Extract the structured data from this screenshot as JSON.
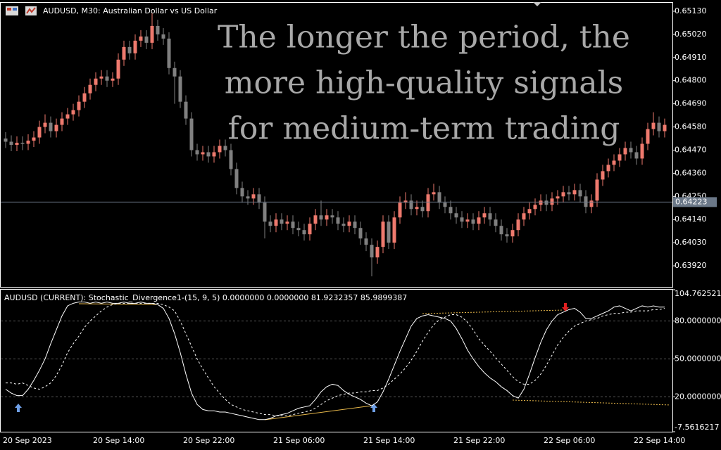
{
  "overlay_text": [
    "The longer the period, the",
    "more high-quality signals",
    "for medium-term trading"
  ],
  "chart_data": [
    {
      "type": "candlestick",
      "title": "AUDUSD, M30:  Australian Dollar vs US Dollar",
      "categories": [
        "20 Sep 2023",
        null,
        null,
        null,
        null,
        null,
        null,
        null,
        null,
        null,
        null,
        null,
        null,
        null,
        null,
        null,
        "20 Sep 14:00",
        null,
        null,
        null,
        null,
        null,
        null,
        null,
        null,
        null,
        null,
        null,
        null,
        null,
        null,
        null,
        "20 Sep 22:00",
        null,
        null,
        null,
        null,
        null,
        null,
        null,
        null,
        null,
        null,
        null,
        null,
        null,
        null,
        null,
        "21 Sep 06:00",
        null,
        null,
        null,
        null,
        null,
        null,
        null,
        null,
        null,
        null,
        null,
        null,
        null,
        null,
        null,
        "21 Sep 14:00",
        null,
        null,
        null,
        null,
        null,
        null,
        null,
        null,
        null,
        null,
        null,
        null,
        null,
        null,
        null,
        "21 Sep 22:00",
        null,
        null,
        null,
        null,
        null,
        null,
        null,
        null,
        null,
        null,
        null,
        null,
        null,
        null,
        null,
        "22 Sep 06:00",
        null,
        null,
        null,
        null,
        null,
        null,
        null,
        null,
        null,
        null,
        null,
        null,
        null,
        null,
        null,
        "22 Sep 14:00",
        null,
        null,
        null,
        null,
        null
      ],
      "open": [
        0.64525,
        0.6451,
        0.64495,
        0.64505,
        0.645,
        0.64515,
        0.6453,
        0.6458,
        0.646,
        0.6456,
        0.6459,
        0.6462,
        0.6464,
        0.6466,
        0.647,
        0.6474,
        0.6478,
        0.6481,
        0.6482,
        0.648,
        0.6481,
        0.649,
        0.6496,
        0.6493,
        0.6499,
        0.6501,
        0.6498,
        0.6506,
        0.6502,
        0.65,
        0.6486,
        0.6482,
        0.647,
        0.6462,
        0.6447,
        0.6445,
        0.6446,
        0.6444,
        0.6446,
        0.6449,
        0.6447,
        0.6438,
        0.6429,
        0.6425,
        0.6424,
        0.6426,
        0.6422,
        0.6413,
        0.6411,
        0.6414,
        0.6412,
        0.6413,
        0.641,
        0.6409,
        0.6407,
        0.6412,
        0.6416,
        0.6414,
        0.6416,
        0.6415,
        0.6412,
        0.6411,
        0.6413,
        0.641,
        0.6405,
        0.6402,
        0.6396,
        0.6401,
        0.6413,
        0.6403,
        0.6415,
        0.6422,
        0.6423,
        0.6419,
        0.642,
        0.6418,
        0.6426,
        0.6427,
        0.6422,
        0.642,
        0.6417,
        0.6415,
        0.6413,
        0.6414,
        0.6412,
        0.6415,
        0.6417,
        0.6414,
        0.6411,
        0.6407,
        0.6406,
        0.6409,
        0.6414,
        0.6417,
        0.6419,
        0.6421,
        0.6423,
        0.6421,
        0.6424,
        0.6425,
        0.6427,
        0.6426,
        0.6428,
        0.6425,
        0.642,
        0.6423,
        0.6433,
        0.6437,
        0.644,
        0.6442,
        0.6445,
        0.6448,
        0.6446,
        0.6443,
        0.645,
        0.6457,
        0.646,
        0.6456
      ],
      "high": [
        0.64555,
        0.6454,
        0.64535,
        0.64535,
        0.64545,
        0.6456,
        0.6461,
        0.6464,
        0.6463,
        0.6462,
        0.6465,
        0.6467,
        0.6469,
        0.6473,
        0.6477,
        0.6481,
        0.6484,
        0.6485,
        0.6485,
        0.6484,
        0.6493,
        0.6499,
        0.6499,
        0.6502,
        0.6504,
        0.6504,
        0.6512,
        0.6509,
        0.6505,
        0.6503,
        0.6489,
        0.6485,
        0.6473,
        0.6465,
        0.645,
        0.6449,
        0.6449,
        0.6449,
        0.6452,
        0.6452,
        0.645,
        0.6441,
        0.6432,
        0.6428,
        0.6429,
        0.6429,
        0.6425,
        0.6416,
        0.6417,
        0.6417,
        0.6416,
        0.6416,
        0.6413,
        0.6412,
        0.6415,
        0.6419,
        0.6423,
        0.6419,
        0.6419,
        0.6418,
        0.6415,
        0.6416,
        0.6416,
        0.6413,
        0.6408,
        0.6405,
        0.6404,
        0.6416,
        0.6416,
        0.6418,
        0.6425,
        0.6427,
        0.6426,
        0.6423,
        0.6423,
        0.6429,
        0.6431,
        0.643,
        0.6425,
        0.6423,
        0.642,
        0.6418,
        0.6417,
        0.6417,
        0.6418,
        0.642,
        0.642,
        0.6417,
        0.6414,
        0.641,
        0.6412,
        0.6417,
        0.642,
        0.6422,
        0.6424,
        0.6426,
        0.6426,
        0.6427,
        0.6428,
        0.643,
        0.643,
        0.6431,
        0.6431,
        0.6428,
        0.6426,
        0.6436,
        0.644,
        0.6443,
        0.6445,
        0.6448,
        0.6451,
        0.6451,
        0.6449,
        0.6453,
        0.646,
        0.6465,
        0.6463,
        0.6462
      ],
      "low": [
        0.6448,
        0.64465,
        0.64465,
        0.6447,
        0.6447,
        0.64485,
        0.645,
        0.6455,
        0.6453,
        0.6453,
        0.6456,
        0.6459,
        0.6461,
        0.6463,
        0.6467,
        0.6471,
        0.6475,
        0.6478,
        0.6477,
        0.6477,
        0.6478,
        0.6487,
        0.649,
        0.649,
        0.6496,
        0.6495,
        0.6495,
        0.6499,
        0.6497,
        0.6483,
        0.6469,
        0.6467,
        0.6459,
        0.6444,
        0.6442,
        0.6442,
        0.6441,
        0.6441,
        0.6443,
        0.6444,
        0.6435,
        0.6426,
        0.6422,
        0.6421,
        0.6421,
        0.6419,
        0.6405,
        0.6408,
        0.6408,
        0.6409,
        0.6409,
        0.6407,
        0.6406,
        0.6404,
        0.6404,
        0.6409,
        0.6411,
        0.6411,
        0.6412,
        0.6409,
        0.6408,
        0.6408,
        0.6407,
        0.6402,
        0.6399,
        0.6387,
        0.6393,
        0.6398,
        0.64,
        0.64,
        0.6412,
        0.6419,
        0.6416,
        0.6416,
        0.6415,
        0.6415,
        0.6423,
        0.6419,
        0.6417,
        0.6414,
        0.6412,
        0.641,
        0.641,
        0.6409,
        0.6409,
        0.6412,
        0.6411,
        0.6408,
        0.6404,
        0.6403,
        0.6403,
        0.6406,
        0.6411,
        0.6414,
        0.6416,
        0.6418,
        0.6418,
        0.6418,
        0.6421,
        0.6422,
        0.6423,
        0.6423,
        0.6422,
        0.6417,
        0.6417,
        0.642,
        0.643,
        0.6434,
        0.6437,
        0.6439,
        0.6442,
        0.6443,
        0.644,
        0.644,
        0.6447,
        0.6454,
        0.6453,
        0.6453
      ],
      "close": [
        0.6451,
        0.64495,
        0.64505,
        0.645,
        0.64515,
        0.6453,
        0.6458,
        0.646,
        0.6456,
        0.6459,
        0.6462,
        0.6464,
        0.6466,
        0.647,
        0.6474,
        0.6478,
        0.6481,
        0.6482,
        0.648,
        0.6481,
        0.649,
        0.6496,
        0.6493,
        0.6499,
        0.6501,
        0.6498,
        0.6506,
        0.6502,
        0.65,
        0.6486,
        0.6482,
        0.647,
        0.6462,
        0.6447,
        0.6445,
        0.6446,
        0.6444,
        0.6446,
        0.6449,
        0.6447,
        0.6438,
        0.6429,
        0.6425,
        0.6424,
        0.6426,
        0.6422,
        0.6413,
        0.6411,
        0.6414,
        0.6412,
        0.6413,
        0.641,
        0.6409,
        0.6407,
        0.6412,
        0.6416,
        0.6414,
        0.6416,
        0.6415,
        0.6412,
        0.6411,
        0.6413,
        0.641,
        0.6405,
        0.6402,
        0.6396,
        0.6401,
        0.6413,
        0.6403,
        0.6415,
        0.6422,
        0.6423,
        0.6419,
        0.642,
        0.6418,
        0.6426,
        0.6427,
        0.6422,
        0.642,
        0.6417,
        0.6415,
        0.6413,
        0.6414,
        0.6412,
        0.6415,
        0.6417,
        0.6414,
        0.6411,
        0.6407,
        0.6406,
        0.6409,
        0.6414,
        0.6417,
        0.6419,
        0.6421,
        0.6423,
        0.6421,
        0.6424,
        0.6425,
        0.6427,
        0.6426,
        0.6428,
        0.6425,
        0.642,
        0.6423,
        0.6433,
        0.6437,
        0.644,
        0.6442,
        0.6445,
        0.6448,
        0.6446,
        0.6443,
        0.645,
        0.6457,
        0.646,
        0.6456,
        0.6459
      ],
      "up_color": "#ef7a6e",
      "down_color": "#808080",
      "current_price": 0.64223,
      "ylim": [
        0.6382,
        0.6517
      ],
      "yticks": [
        {
          "value": 0.6513,
          "label": "0.65130"
        },
        {
          "value": 0.6502,
          "label": "0.65020"
        },
        {
          "value": 0.6491,
          "label": "0.64910"
        },
        {
          "value": 0.648,
          "label": "0.64800"
        },
        {
          "value": 0.6469,
          "label": "0.64690"
        },
        {
          "value": 0.6458,
          "label": "0.64580"
        },
        {
          "value": 0.6447,
          "label": "0.64470"
        },
        {
          "value": 0.6436,
          "label": "0.64360"
        },
        {
          "value": 0.6425,
          "label": "0.64250"
        },
        {
          "value": 0.6414,
          "label": "0.64140"
        },
        {
          "value": 0.6403,
          "label": "0.64030"
        },
        {
          "value": 0.6392,
          "label": "0.63920"
        }
      ],
      "grid": false
    },
    {
      "type": "line",
      "title": "AUDUSD (CURRENT): Stochastic_Divergence1-(15, 9, 5) 0.0000000 0.0000000 81.9232357 85.9899387",
      "series": [
        {
          "color": "#ffffff",
          "dash": false,
          "values": [
            26,
            23,
            21,
            21,
            26,
            33,
            41,
            50,
            62,
            73,
            84,
            92,
            94,
            95,
            95,
            94,
            95,
            94,
            95,
            94,
            94,
            95,
            94,
            94,
            95,
            94,
            94,
            93,
            90,
            82,
            70,
            55,
            38,
            23,
            14,
            10,
            9,
            9,
            8,
            8,
            7,
            6,
            5,
            4,
            3,
            2,
            2,
            3,
            5,
            6,
            7,
            9,
            11,
            12,
            13,
            18,
            24,
            28,
            30,
            29,
            25,
            22,
            20,
            18,
            15,
            13,
            16,
            24,
            34,
            45,
            56,
            66,
            76,
            82,
            84,
            85,
            84,
            83,
            82,
            80,
            74,
            66,
            57,
            50,
            44,
            39,
            35,
            32,
            28,
            25,
            21,
            19,
            26,
            38,
            51,
            63,
            73,
            80,
            85,
            87,
            89,
            90,
            87,
            82,
            82,
            84,
            86,
            88,
            91,
            92,
            90,
            88,
            90,
            92,
            91,
            92,
            91,
            91
          ]
        },
        {
          "color": "#ffffff",
          "dash": true,
          "values": [
            31,
            31,
            30,
            31,
            29,
            27,
            26,
            28,
            31,
            37,
            45,
            55,
            62,
            68,
            75,
            80,
            84,
            88,
            91,
            93,
            94,
            94,
            94,
            94,
            94,
            94,
            94,
            94,
            93,
            91,
            88,
            80,
            70,
            60,
            50,
            42,
            35,
            28,
            23,
            18,
            14,
            12,
            10,
            9,
            8,
            7,
            6,
            6,
            5,
            5,
            5,
            6,
            7,
            8,
            9,
            11,
            14,
            17,
            19,
            21,
            22,
            23,
            23,
            24,
            24,
            25,
            25,
            27,
            30,
            34,
            38,
            43,
            49,
            56,
            64,
            71,
            77,
            81,
            83,
            85,
            85,
            83,
            79,
            73,
            66,
            61,
            56,
            51,
            46,
            41,
            36,
            32,
            30,
            30,
            33,
            38,
            45,
            53,
            61,
            67,
            72,
            76,
            78,
            80,
            81,
            82,
            84,
            85,
            86,
            86,
            87,
            87,
            88,
            88,
            88,
            89,
            89,
            90
          ]
        }
      ],
      "ylim": [
        -7.5616217,
        104.762521
      ],
      "yticks": [
        104.762521,
        {
          "value": 80,
          "label": "80.0000000"
        },
        {
          "value": 50,
          "label": "50.0000000"
        },
        {
          "value": 20,
          "label": "20.0000000"
        },
        -7.5616217
      ],
      "grid": true
    }
  ]
}
